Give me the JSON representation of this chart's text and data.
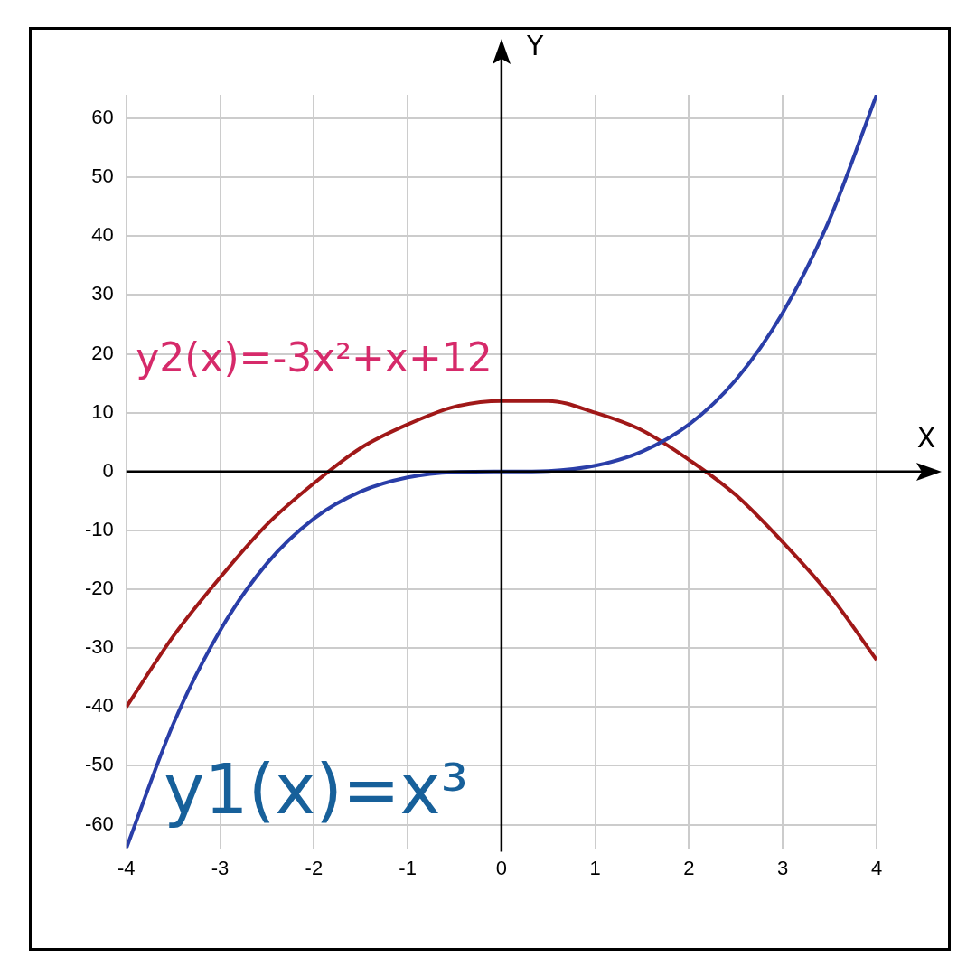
{
  "chart_data": {
    "type": "line",
    "xlabel": "X",
    "ylabel": "Y",
    "x": [
      -4,
      -3.5,
      -3,
      -2.5,
      -2,
      -1.5,
      -1,
      -0.5,
      0,
      0.5,
      1,
      1.5,
      2,
      2.5,
      3,
      3.5,
      4
    ],
    "series": [
      {
        "name": "y1(x)=x³",
        "color": "#2a3ea8",
        "values": [
          -64,
          -42.9,
          -27,
          -15.6,
          -8,
          -3.4,
          -1,
          -0.1,
          0,
          0.1,
          1,
          3.4,
          8,
          15.6,
          27,
          42.9,
          64
        ]
      },
      {
        "name": "y2(x)=-3x²+x+12",
        "color": "#a01818",
        "values": [
          -40,
          -28,
          -18,
          -9,
          -2,
          4,
          8,
          11,
          12,
          12,
          10,
          7,
          2,
          -4,
          -12,
          -21,
          -32
        ]
      }
    ],
    "xlim": [
      -4,
      4
    ],
    "ylim": [
      -64,
      64
    ],
    "xticks": [
      -4,
      -3,
      -2,
      -1,
      0,
      1,
      2,
      3,
      4
    ],
    "yticks": [
      -60,
      -50,
      -40,
      -30,
      -20,
      -10,
      0,
      10,
      20,
      30,
      40,
      50,
      60
    ],
    "grid": true,
    "legend": false,
    "marker": "none",
    "line_style": "solid"
  }
}
